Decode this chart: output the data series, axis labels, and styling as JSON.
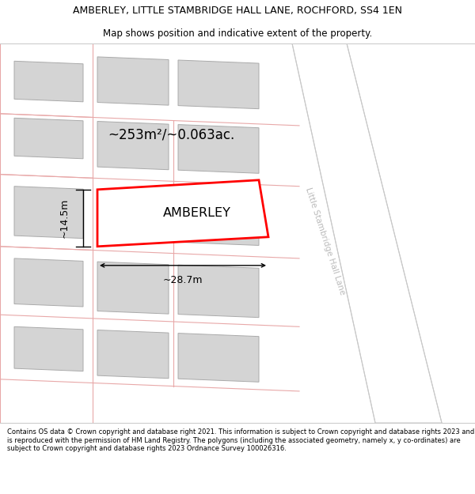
{
  "title_line1": "AMBERLEY, LITTLE STAMBRIDGE HALL LANE, ROCHFORD, SS4 1EN",
  "title_line2": "Map shows position and indicative extent of the property.",
  "footer_text": "Contains OS data © Crown copyright and database right 2021. This information is subject to Crown copyright and database rights 2023 and is reproduced with the permission of HM Land Registry. The polygons (including the associated geometry, namely x, y co-ordinates) are subject to Crown copyright and database rights 2023 Ordnance Survey 100026316.",
  "building_fill": "#d4d4d4",
  "building_edge": "#aaaaaa",
  "road_fill": "#ffffff",
  "lane_color": "#e8a8a8",
  "road_band_fill": "#f0f0f0",
  "road_band_edge": "#c8c8c8",
  "road_label_color": "#bbbbbb",
  "highlight_color": "#ff0000",
  "area_text": "~253m²/~0.063ac.",
  "width_text": "~28.7m",
  "height_text": "~14.5m",
  "property_label": "AMBERLEY",
  "title_fontsize": 9.0,
  "subtitle_fontsize": 8.5,
  "footer_fontsize": 6.0,
  "label_fontsize": 11.5,
  "area_fontsize": 12.0,
  "dim_fontsize": 9.0,
  "road_text_fontsize": 7.5
}
